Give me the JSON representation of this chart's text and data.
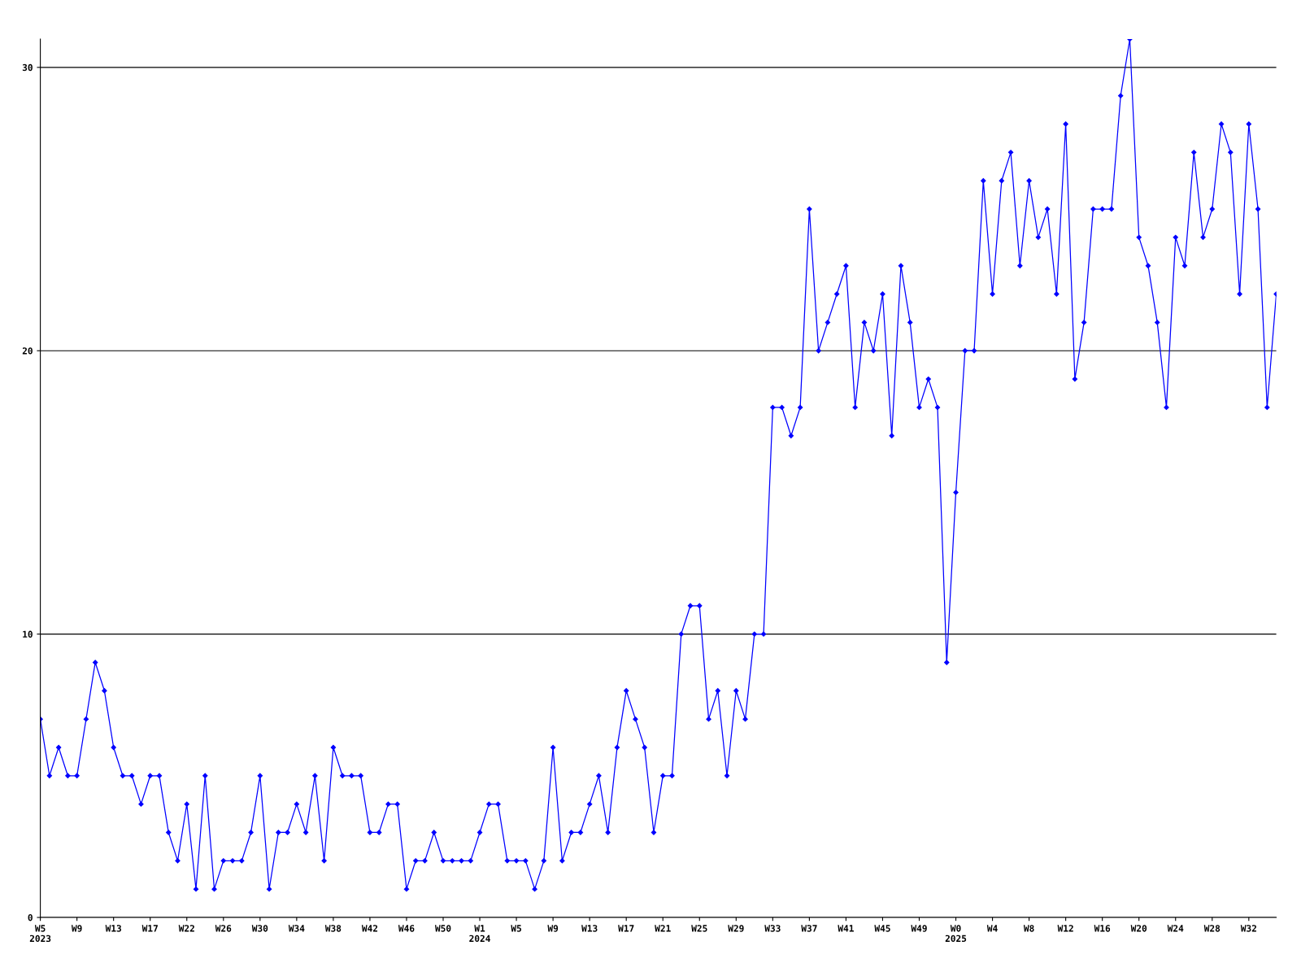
{
  "chart_data": {
    "type": "line",
    "categories": [
      "W5\n2023",
      null,
      null,
      null,
      "W9",
      null,
      null,
      null,
      "W13",
      null,
      null,
      null,
      "W17",
      null,
      null,
      null,
      "W22",
      null,
      null,
      null,
      "W26",
      null,
      null,
      null,
      "W30",
      null,
      null,
      null,
      "W34",
      null,
      null,
      null,
      "W38",
      null,
      null,
      null,
      "W42",
      null,
      null,
      null,
      "W46",
      null,
      null,
      null,
      "W50",
      null,
      null,
      null,
      "W1\n2024",
      null,
      null,
      null,
      "W5",
      null,
      null,
      null,
      "W9",
      null,
      null,
      null,
      "W13",
      null,
      null,
      null,
      "W17",
      null,
      null,
      null,
      "W21",
      null,
      null,
      null,
      "W25",
      null,
      null,
      null,
      "W29",
      null,
      null,
      null,
      "W33",
      null,
      null,
      null,
      "W37",
      null,
      null,
      null,
      "W41",
      null,
      null,
      null,
      "W45",
      null,
      null,
      null,
      "W49",
      null,
      null,
      null,
      "W0\n2025",
      null,
      null,
      null,
      "W4",
      null,
      null,
      null,
      "W8",
      null,
      null,
      null,
      "W12",
      null,
      null,
      null,
      "W16",
      null,
      null,
      null,
      "W20",
      null,
      null,
      null,
      "W24",
      null,
      null,
      null,
      "W28",
      null,
      null,
      null,
      "W32",
      null,
      null,
      null
    ],
    "series": [
      {
        "color": "#0000ff",
        "values": [
          7,
          5,
          6,
          5,
          5,
          7,
          9,
          8,
          6,
          5,
          5,
          4,
          5,
          5,
          3,
          2,
          4,
          1,
          5,
          1,
          2,
          2,
          2,
          3,
          5,
          1,
          3,
          3,
          4,
          3,
          5,
          2,
          6,
          5,
          5,
          5,
          3,
          3,
          4,
          4,
          1,
          2,
          2,
          3,
          2,
          2,
          2,
          2,
          3,
          4,
          4,
          2,
          2,
          2,
          1,
          2,
          6,
          2,
          3,
          3,
          4,
          5,
          3,
          6,
          8,
          7,
          6,
          3,
          5,
          5,
          10,
          11,
          11,
          7,
          8,
          5,
          8,
          7,
          10,
          10,
          18,
          18,
          17,
          18,
          25,
          20,
          21,
          22,
          23,
          18,
          21,
          20,
          22,
          17,
          23,
          21,
          18,
          19,
          18,
          9,
          15,
          20,
          20,
          26,
          22,
          26,
          27,
          23,
          26,
          24,
          25,
          22,
          28,
          19,
          21,
          25,
          25,
          25,
          29,
          31,
          24,
          23,
          21,
          18,
          24,
          23,
          27,
          24,
          25,
          28,
          27,
          22,
          28,
          25,
          18,
          22
        ]
      }
    ],
    "ylim": [
      0,
      31
    ],
    "yticks": [
      0,
      10,
      20,
      30
    ],
    "grid": "y",
    "marker": "diamond",
    "line_style": "solid",
    "legend": false
  }
}
